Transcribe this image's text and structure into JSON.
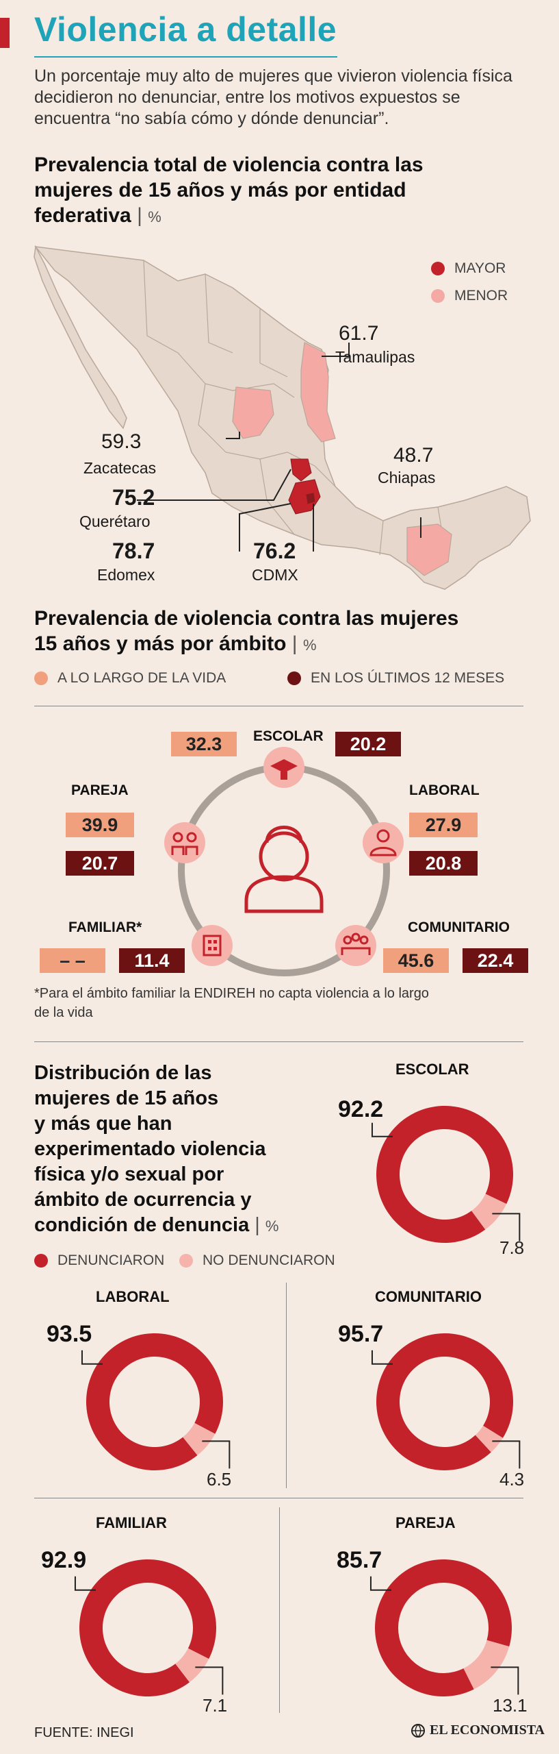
{
  "header": {
    "title": "Violencia a detalle",
    "intro": "Un porcentaje muy alto de mujeres que vivieron violencia física decidieron no denunciar, entre los motivos expuestos se encuentra “no sabía cómo y dónde denunciar”."
  },
  "colors": {
    "accent_teal": "#1ea3b8",
    "red": "#c3222a",
    "dark_red": "#6d1212",
    "salmon": "#f1a07e",
    "pink": "#f5a9a4",
    "map_land": "#e6d8cc"
  },
  "section1": {
    "title_line1": "Prevalencia total de violencia contra las",
    "title_line2": "mujeres de 15 años y más por entidad",
    "title_line3": "federativa",
    "unit": "%",
    "legend": {
      "mayor": "MAYOR",
      "menor": "MENOR"
    }
  },
  "section2": {
    "title_line1": "Prevalencia de violencia contra las mujeres",
    "title_line2": "15 años y más por ámbito",
    "unit": "%",
    "legend": {
      "life": "A LO LARGO DE LA VIDA",
      "last12": "EN LOS ÚLTIMOS 12 MESES"
    },
    "footnote_line1": "*Para el ámbito familiar la ENDIREH no capta violencia a lo largo",
    "footnote_line2": "de la vida"
  },
  "section3": {
    "title_line1": "Distribución de las",
    "title_line2": "mujeres de 15 años",
    "title_line3": "y más que han",
    "title_line4": "experimentado violencia",
    "title_line5": "física y/o sexual por",
    "title_line6": "ámbito de ocurrencia y",
    "title_line7": "condición de denuncia",
    "unit": "%",
    "legend": {
      "yes": "DENUNCIARON",
      "no": "NO DENUNCIARON"
    }
  },
  "footer": {
    "source": "FUENTE: INEGI",
    "brand": "EL ECONOMISTA"
  },
  "chart_data": [
    {
      "type": "map",
      "title": "Prevalencia total de violencia contra las mujeres de 15 años y más por entidad federativa",
      "unit": "%",
      "regions": [
        {
          "name": "Tamaulipas",
          "value": 61.7,
          "category": "MENOR"
        },
        {
          "name": "Zacatecas",
          "value": 59.3,
          "category": "MENOR"
        },
        {
          "name": "Querétaro",
          "value": 75.2,
          "category": "MAYOR"
        },
        {
          "name": "Edomex",
          "value": 78.7,
          "category": "MAYOR"
        },
        {
          "name": "CDMX",
          "value": 76.2,
          "category": "MAYOR"
        },
        {
          "name": "Chiapas",
          "value": 48.7,
          "category": "MENOR"
        }
      ]
    },
    {
      "type": "table",
      "title": "Prevalencia de violencia contra las mujeres 15 años y más por ámbito",
      "unit": "%",
      "columns": [
        "A LO LARGO DE LA VIDA",
        "EN LOS ÚLTIMOS 12 MESES"
      ],
      "rows": [
        {
          "ambito": "ESCOLAR",
          "life": "32.3",
          "last12": "20.2"
        },
        {
          "ambito": "PAREJA",
          "life": "39.9",
          "last12": "20.7"
        },
        {
          "ambito": "LABORAL",
          "life": "27.9",
          "last12": "20.8"
        },
        {
          "ambito": "FAMILIAR*",
          "life": "– –",
          "last12": "11.4"
        },
        {
          "ambito": "COMUNITARIO",
          "life": "45.6",
          "last12": "22.4"
        }
      ]
    },
    {
      "type": "pie",
      "title": "Distribución de las mujeres de 15 años y más que han experimentado violencia física y/o sexual por ámbito de ocurrencia y condición de denuncia",
      "unit": "%",
      "categories": [
        "DENUNCIARON",
        "NO DENUNCIARON"
      ],
      "donuts": [
        {
          "name": "ESCOLAR",
          "denunciaron": 92.2,
          "no_denunciaron": 7.8,
          "big_label": "92.2",
          "small_label": "7.8"
        },
        {
          "name": "LABORAL",
          "denunciaron": 93.5,
          "no_denunciaron": 6.5,
          "big_label": "93.5",
          "small_label": "6.5"
        },
        {
          "name": "COMUNITARIO",
          "denunciaron": 95.7,
          "no_denunciaron": 4.3,
          "big_label": "95.7",
          "small_label": "4.3"
        },
        {
          "name": "FAMILIAR",
          "denunciaron": 92.9,
          "no_denunciaron": 7.1,
          "big_label": "92.9",
          "small_label": "7.1"
        },
        {
          "name": "PAREJA",
          "denunciaron": 85.7,
          "no_denunciaron": 13.1,
          "big_label": "85.7",
          "small_label": "13.1"
        }
      ]
    }
  ]
}
